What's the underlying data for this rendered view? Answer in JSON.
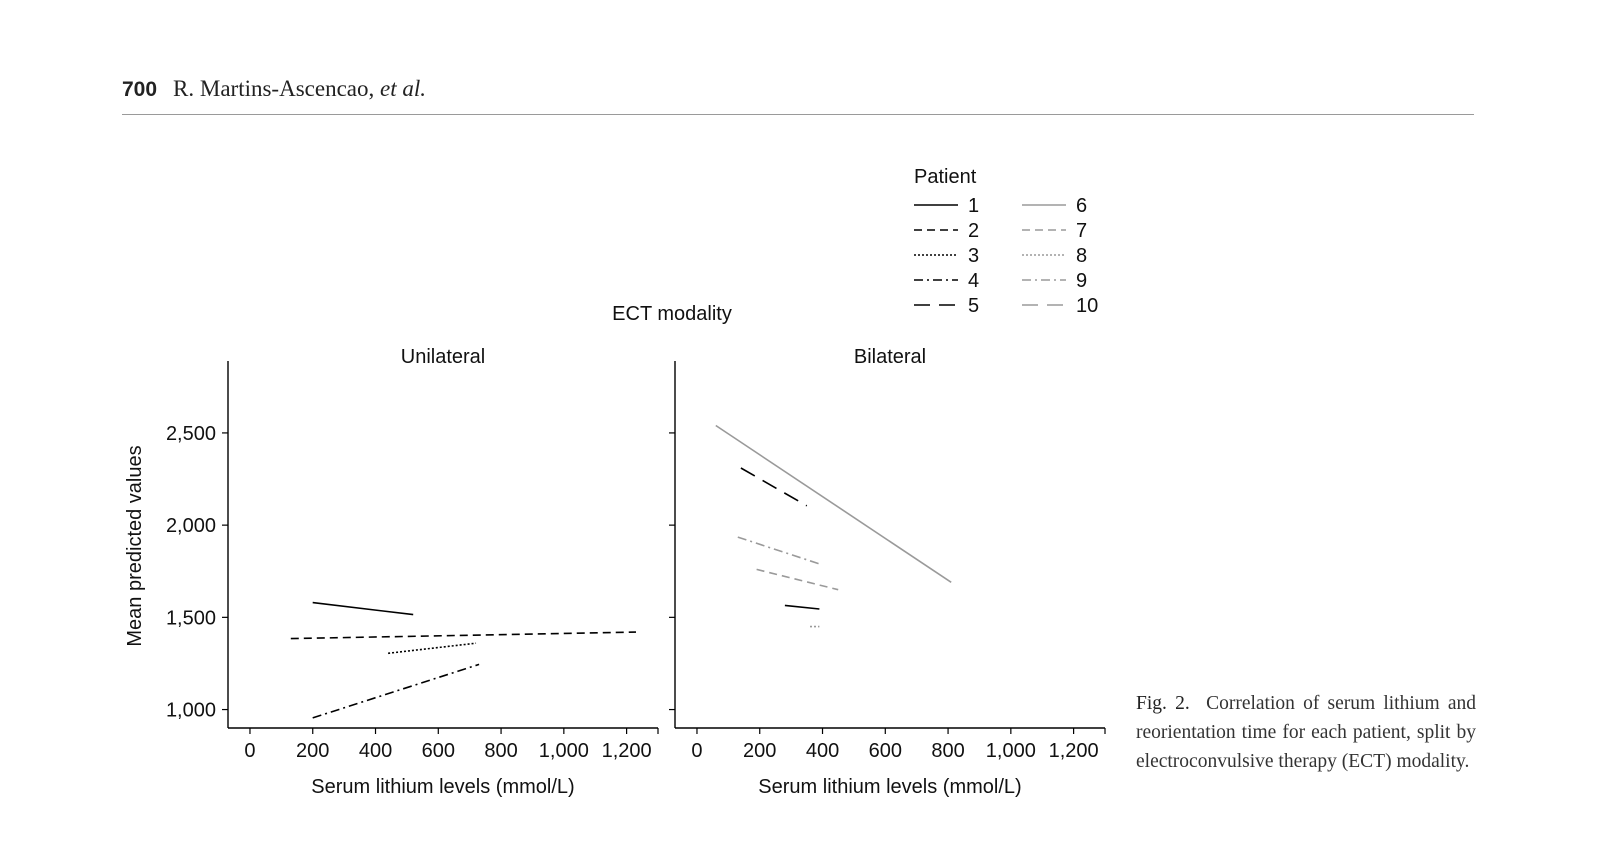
{
  "header": {
    "page_number": "700",
    "authors": "R. Martins-Ascencao,",
    "etal": "et al."
  },
  "caption": {
    "label": "Fig. 2.",
    "text": "Correlation of serum lithium and reorientation time for each patient, split by electroconvulsive therapy (ECT) modality."
  },
  "legend": {
    "title": "Patient",
    "entries": [
      {
        "label": "1",
        "color": "#000000",
        "dash": "solid"
      },
      {
        "label": "2",
        "color": "#000000",
        "dash": "dash"
      },
      {
        "label": "3",
        "color": "#000000",
        "dash": "dot"
      },
      {
        "label": "4",
        "color": "#000000",
        "dash": "dashdot"
      },
      {
        "label": "5",
        "color": "#000000",
        "dash": "longdash"
      },
      {
        "label": "6",
        "color": "#9a9a9a",
        "dash": "solid"
      },
      {
        "label": "7",
        "color": "#9a9a9a",
        "dash": "dash"
      },
      {
        "label": "8",
        "color": "#9a9a9a",
        "dash": "dot"
      },
      {
        "label": "9",
        "color": "#9a9a9a",
        "dash": "dashdot"
      },
      {
        "label": "10",
        "color": "#9a9a9a",
        "dash": "longdash"
      }
    ]
  },
  "chart_data": {
    "type": "line",
    "title": "ECT modality",
    "ylabel": "Mean predicted values",
    "xlabel": "Serum lithium levels (mmol/L)",
    "xlim": [
      -70,
      1300
    ],
    "ylim": [
      900,
      2890
    ],
    "xticks": [
      0,
      200,
      400,
      600,
      800,
      1000,
      1200
    ],
    "xtick_labels": [
      "0",
      "200",
      "400",
      "600",
      "800",
      "1,000",
      "1,200"
    ],
    "yticks": [
      1000,
      1500,
      2000,
      2500
    ],
    "ytick_labels": [
      "1,000",
      "1,500",
      "2,000",
      "2,500"
    ],
    "panels": [
      {
        "title": "Unilateral",
        "series": [
          {
            "name": "1",
            "x": [
              200,
              520
            ],
            "y": [
              1580,
              1515
            ]
          },
          {
            "name": "2",
            "x": [
              130,
              1230
            ],
            "y": [
              1385,
              1420
            ]
          },
          {
            "name": "3",
            "x": [
              440,
              720
            ],
            "y": [
              1305,
              1360
            ]
          },
          {
            "name": "4",
            "x": [
              200,
              730
            ],
            "y": [
              955,
              1245
            ]
          }
        ]
      },
      {
        "title": "Bilateral",
        "series": [
          {
            "name": "5",
            "x": [
              140,
              350
            ],
            "y": [
              2310,
              2105
            ]
          },
          {
            "name": "6",
            "x": [
              60,
              810
            ],
            "y": [
              2540,
              1690
            ]
          },
          {
            "name": "7",
            "x": [
              190,
              450
            ],
            "y": [
              1760,
              1650
            ]
          },
          {
            "name": "8",
            "x": [
              360,
              390
            ],
            "y": [
              1450,
              1450
            ]
          },
          {
            "name": "9",
            "x": [
              130,
              390
            ],
            "y": [
              1935,
              1790
            ]
          },
          {
            "name": "1",
            "x": [
              280,
              390
            ],
            "y": [
              1565,
              1545
            ]
          }
        ]
      }
    ],
    "legend_position": "top-right"
  }
}
